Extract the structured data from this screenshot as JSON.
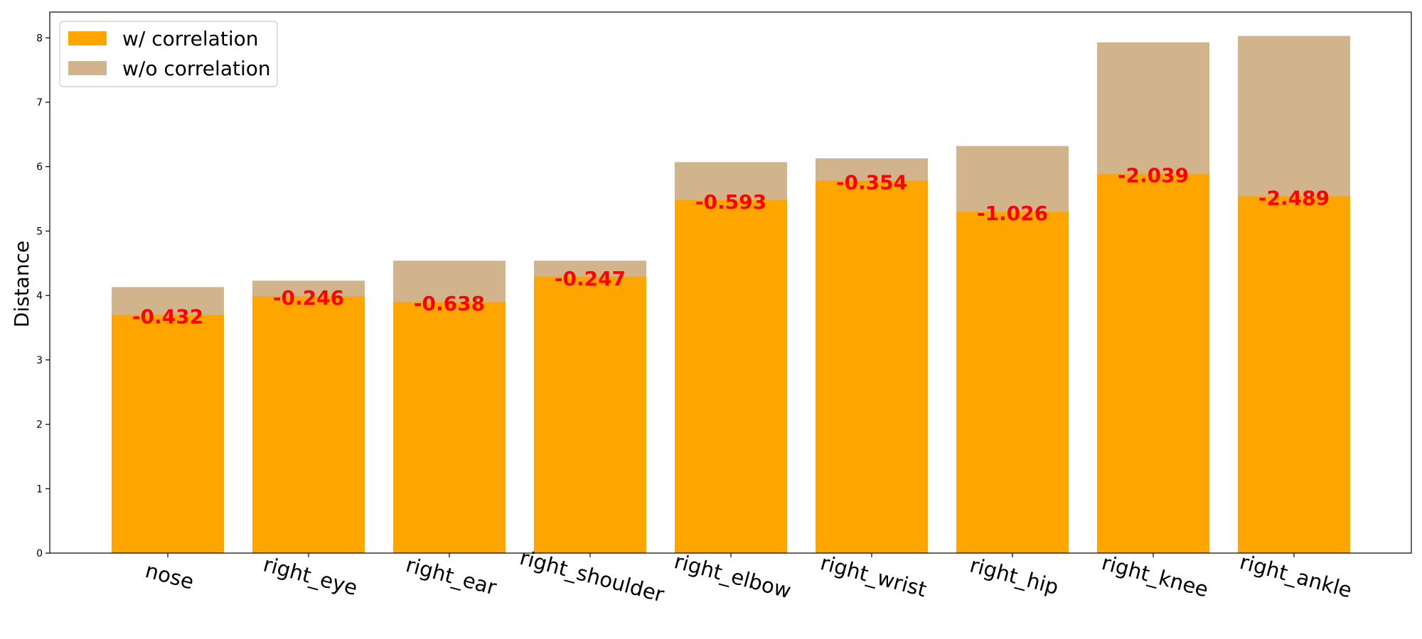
{
  "chart_data": {
    "type": "bar",
    "title": "",
    "xlabel": "",
    "ylabel": "Distance",
    "ylim": [
      0,
      8.4
    ],
    "yticks": [
      "0",
      "1",
      "2",
      "3",
      "4",
      "5",
      "6",
      "7",
      "8"
    ],
    "categories": [
      "nose",
      "right_eye",
      "right_ear",
      "right_shoulder",
      "right_elbow",
      "right_wrist",
      "right_hip",
      "right_knee",
      "right_ankle"
    ],
    "series": [
      {
        "name": "w/o correlation",
        "color": "#d2b48c",
        "values": [
          4.13,
          4.23,
          4.54,
          4.54,
          6.07,
          6.13,
          6.32,
          7.93,
          8.03
        ]
      },
      {
        "name": "w/ correlation",
        "color": "#ffa500",
        "values": [
          3.7,
          3.99,
          3.9,
          4.29,
          5.48,
          5.78,
          5.3,
          5.89,
          5.54
        ]
      }
    ],
    "annotations": [
      "-0.432",
      "-0.246",
      "-0.638",
      "-0.247",
      "-0.593",
      "-0.354",
      "-1.026",
      "-2.039",
      "-2.489"
    ],
    "annotation_color": "#ff0000",
    "grid": false,
    "legend_position": "top-left",
    "legend_order": [
      "w/ correlation",
      "w/o correlation"
    ]
  }
}
